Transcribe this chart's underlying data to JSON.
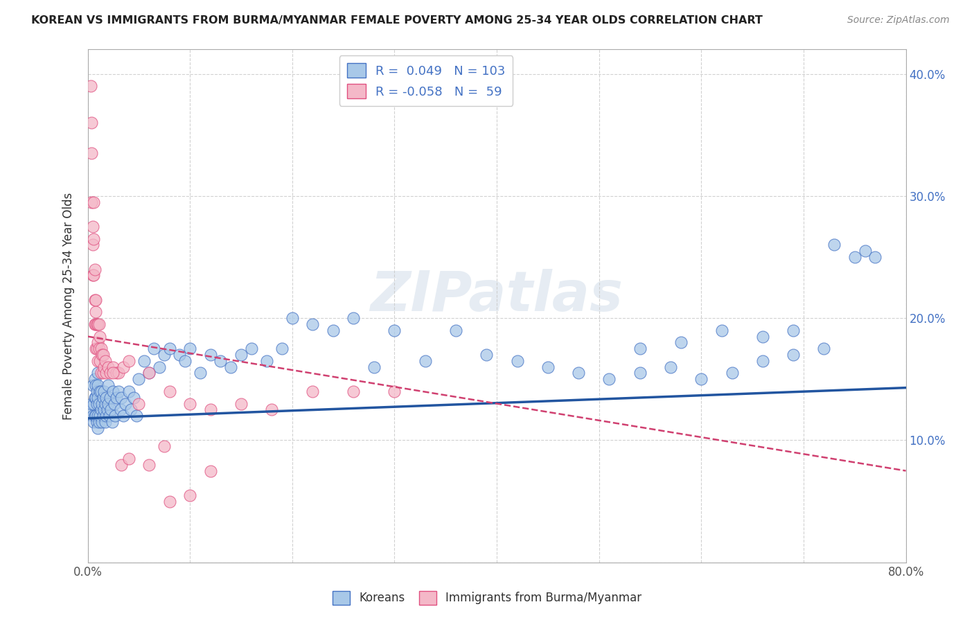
{
  "title": "KOREAN VS IMMIGRANTS FROM BURMA/MYANMAR FEMALE POVERTY AMONG 25-34 YEAR OLDS CORRELATION CHART",
  "source": "Source: ZipAtlas.com",
  "ylabel": "Female Poverty Among 25-34 Year Olds",
  "xlim": [
    0.0,
    0.8
  ],
  "ylim": [
    0.0,
    0.42
  ],
  "blue_color": "#a8c8e8",
  "blue_edge_color": "#4472c4",
  "pink_color": "#f4b8c8",
  "pink_edge_color": "#e05080",
  "blue_line_color": "#2255a0",
  "pink_line_color": "#d04070",
  "watermark": "ZIPatlas",
  "legend_label1": "Koreans",
  "legend_label2": "Immigrants from Burma/Myanmar",
  "korean_R": 0.049,
  "korean_N": 103,
  "burma_R": -0.058,
  "burma_N": 59,
  "korean_line_x0": 0.0,
  "korean_line_y0": 0.118,
  "korean_line_x1": 0.8,
  "korean_line_y1": 0.143,
  "burma_line_x0": 0.0,
  "burma_line_y0": 0.185,
  "burma_line_x1": 0.8,
  "burma_line_y1": 0.075,
  "korean_x": [
    0.003,
    0.004,
    0.005,
    0.005,
    0.006,
    0.006,
    0.007,
    0.007,
    0.007,
    0.008,
    0.008,
    0.008,
    0.009,
    0.009,
    0.009,
    0.01,
    0.01,
    0.01,
    0.01,
    0.01,
    0.011,
    0.011,
    0.012,
    0.012,
    0.013,
    0.013,
    0.014,
    0.014,
    0.015,
    0.015,
    0.016,
    0.016,
    0.017,
    0.017,
    0.018,
    0.018,
    0.019,
    0.02,
    0.02,
    0.021,
    0.022,
    0.023,
    0.024,
    0.025,
    0.026,
    0.027,
    0.028,
    0.03,
    0.032,
    0.033,
    0.035,
    0.037,
    0.04,
    0.042,
    0.045,
    0.048,
    0.05,
    0.055,
    0.06,
    0.065,
    0.07,
    0.075,
    0.08,
    0.09,
    0.095,
    0.1,
    0.11,
    0.12,
    0.13,
    0.14,
    0.15,
    0.16,
    0.175,
    0.19,
    0.2,
    0.22,
    0.24,
    0.26,
    0.28,
    0.3,
    0.33,
    0.36,
    0.39,
    0.42,
    0.45,
    0.48,
    0.51,
    0.54,
    0.57,
    0.6,
    0.63,
    0.66,
    0.69,
    0.72,
    0.75,
    0.76,
    0.77,
    0.73,
    0.69,
    0.66,
    0.62,
    0.58,
    0.54
  ],
  "korean_y": [
    0.125,
    0.13,
    0.12,
    0.145,
    0.115,
    0.13,
    0.12,
    0.135,
    0.15,
    0.12,
    0.135,
    0.145,
    0.115,
    0.13,
    0.14,
    0.11,
    0.12,
    0.135,
    0.145,
    0.155,
    0.115,
    0.13,
    0.12,
    0.14,
    0.125,
    0.14,
    0.115,
    0.13,
    0.12,
    0.135,
    0.125,
    0.14,
    0.115,
    0.13,
    0.12,
    0.135,
    0.125,
    0.13,
    0.145,
    0.12,
    0.135,
    0.125,
    0.115,
    0.14,
    0.13,
    0.12,
    0.135,
    0.14,
    0.125,
    0.135,
    0.12,
    0.13,
    0.14,
    0.125,
    0.135,
    0.12,
    0.15,
    0.165,
    0.155,
    0.175,
    0.16,
    0.17,
    0.175,
    0.17,
    0.165,
    0.175,
    0.155,
    0.17,
    0.165,
    0.16,
    0.17,
    0.175,
    0.165,
    0.175,
    0.2,
    0.195,
    0.19,
    0.2,
    0.16,
    0.19,
    0.165,
    0.19,
    0.17,
    0.165,
    0.16,
    0.155,
    0.15,
    0.155,
    0.16,
    0.15,
    0.155,
    0.165,
    0.17,
    0.175,
    0.25,
    0.255,
    0.25,
    0.26,
    0.19,
    0.185,
    0.19,
    0.18,
    0.175
  ],
  "burma_x": [
    0.003,
    0.004,
    0.004,
    0.004,
    0.005,
    0.005,
    0.005,
    0.006,
    0.006,
    0.006,
    0.007,
    0.007,
    0.007,
    0.008,
    0.008,
    0.008,
    0.008,
    0.009,
    0.009,
    0.01,
    0.01,
    0.01,
    0.011,
    0.011,
    0.012,
    0.012,
    0.013,
    0.013,
    0.014,
    0.015,
    0.015,
    0.016,
    0.017,
    0.018,
    0.02,
    0.022,
    0.025,
    0.028,
    0.03,
    0.035,
    0.04,
    0.05,
    0.06,
    0.08,
    0.1,
    0.12,
    0.15,
    0.18,
    0.22,
    0.26,
    0.3,
    0.025,
    0.033,
    0.04,
    0.06,
    0.075,
    0.08,
    0.1,
    0.12
  ],
  "burma_y": [
    0.39,
    0.36,
    0.335,
    0.295,
    0.275,
    0.26,
    0.235,
    0.295,
    0.265,
    0.235,
    0.24,
    0.215,
    0.195,
    0.205,
    0.195,
    0.175,
    0.215,
    0.195,
    0.175,
    0.18,
    0.165,
    0.195,
    0.175,
    0.195,
    0.185,
    0.165,
    0.175,
    0.155,
    0.17,
    0.17,
    0.155,
    0.16,
    0.165,
    0.155,
    0.16,
    0.155,
    0.16,
    0.155,
    0.155,
    0.16,
    0.165,
    0.13,
    0.155,
    0.14,
    0.13,
    0.125,
    0.13,
    0.125,
    0.14,
    0.14,
    0.14,
    0.155,
    0.08,
    0.085,
    0.08,
    0.095,
    0.05,
    0.055,
    0.075
  ]
}
